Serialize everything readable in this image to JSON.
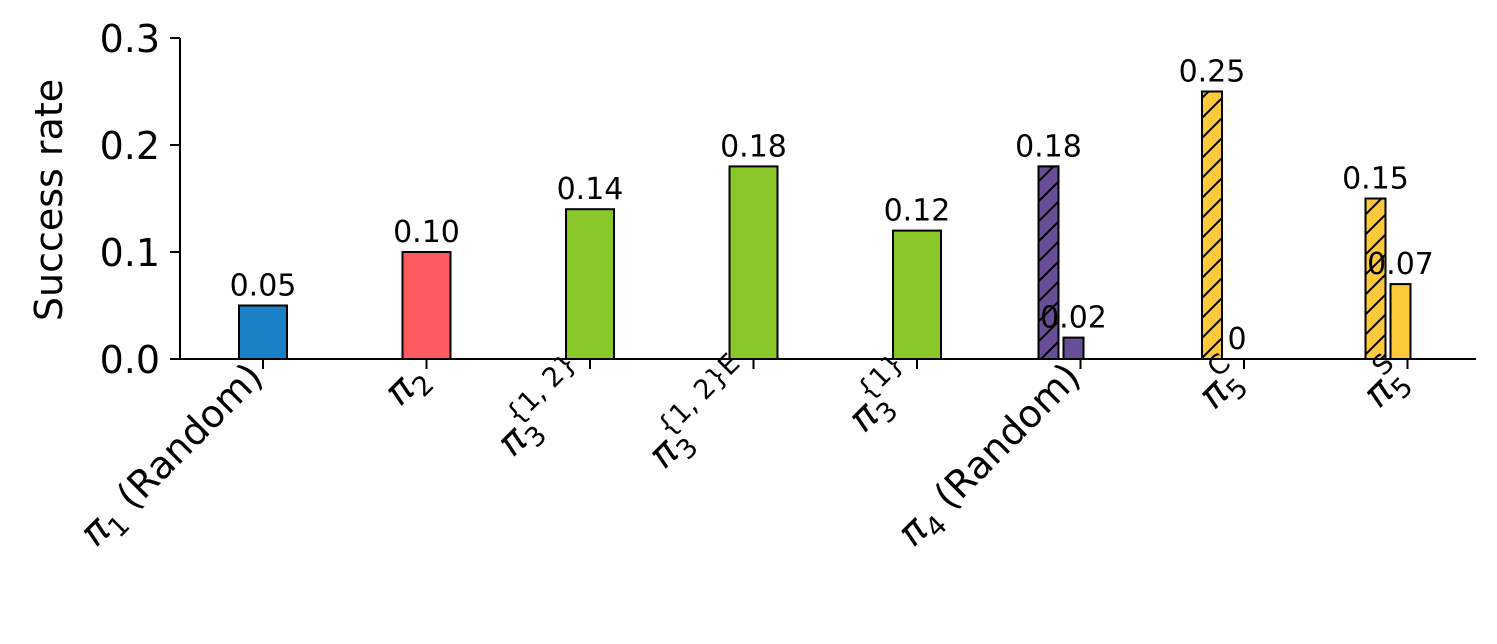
{
  "chart_data": {
    "type": "bar",
    "ylabel": "Success rate",
    "ylim": [
      0,
      0.3
    ],
    "yticks": [
      {
        "value": 0.0,
        "label": "0.0"
      },
      {
        "value": 0.1,
        "label": "0.1"
      },
      {
        "value": 0.2,
        "label": "0.2"
      },
      {
        "value": 0.3,
        "label": "0.3"
      }
    ],
    "grid": false,
    "groups": [
      {
        "label": "π",
        "sub": "1",
        "sup": "",
        "suffix": " (Random)",
        "bars": [
          {
            "value": 0.05,
            "label": "0.05",
            "color": "#1a80c6",
            "hatch": false
          }
        ]
      },
      {
        "label": "π",
        "sub": "2",
        "sup": "",
        "suffix": "",
        "bars": [
          {
            "value": 0.1,
            "label": "0.10",
            "color": "#ff5a5f",
            "hatch": false
          }
        ]
      },
      {
        "label": "π",
        "sub": "3",
        "sup": "{1, 2}",
        "suffix": "",
        "bars": [
          {
            "value": 0.14,
            "label": "0.14",
            "color": "#89c828",
            "hatch": false
          }
        ]
      },
      {
        "label": "π",
        "sub": "3",
        "sup": "{1, 2}E",
        "suffix": "",
        "bars": [
          {
            "value": 0.18,
            "label": "0.18",
            "color": "#89c828",
            "hatch": false
          }
        ]
      },
      {
        "label": "π",
        "sub": "3",
        "sup": "{1}",
        "suffix": "",
        "bars": [
          {
            "value": 0.12,
            "label": "0.12",
            "color": "#89c828",
            "hatch": false
          }
        ]
      },
      {
        "label": "π",
        "sub": "4",
        "sup": "",
        "suffix": " (Random)",
        "bars": [
          {
            "value": 0.18,
            "label": "0.18",
            "color": "#674e97",
            "hatch": true
          },
          {
            "value": 0.02,
            "label": "0.02",
            "color": "#674e97",
            "hatch": false
          }
        ]
      },
      {
        "label": "π",
        "sub": "5",
        "sup": "C",
        "suffix": "",
        "bars": [
          {
            "value": 0.25,
            "label": "0.25",
            "color": "#ffc93c",
            "hatch": true
          },
          {
            "value": 0.0,
            "label": "0",
            "color": "#ffc93c",
            "hatch": false
          }
        ]
      },
      {
        "label": "π",
        "sub": "5",
        "sup": "S",
        "suffix": "",
        "bars": [
          {
            "value": 0.15,
            "label": "0.15",
            "color": "#ffc93c",
            "hatch": true
          },
          {
            "value": 0.07,
            "label": "0.07",
            "color": "#ffc93c",
            "hatch": false
          }
        ]
      }
    ]
  }
}
